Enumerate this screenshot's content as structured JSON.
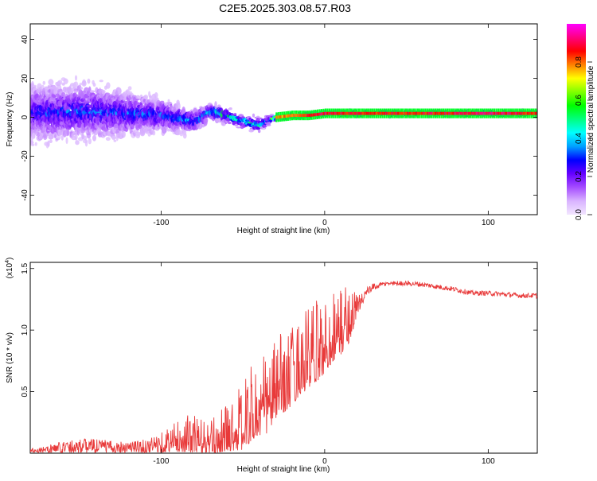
{
  "title": "C2E5.2025.303.08.57.R03",
  "chart_data": [
    {
      "type": "heatmap",
      "xlabel": "Height of straight line (km)",
      "ylabel": "Frequency (Hz)",
      "xlim": [
        -180,
        130
      ],
      "ylim": [
        -50,
        48
      ],
      "xticks": [
        -100,
        0,
        100
      ],
      "xtick_labels": [
        "-100",
        "0",
        "100"
      ],
      "yticks": [
        -40,
        -20,
        0,
        20,
        40
      ],
      "ytick_labels": [
        "-40",
        "-20",
        "0",
        "20",
        "40"
      ],
      "colorbar": {
        "label": "Normalized spectral amplitude",
        "range": [
          0,
          1
        ],
        "ticks": [
          0.0,
          0.2,
          0.4,
          0.6,
          0.8
        ],
        "tick_labels": [
          "0.0",
          "0.2",
          "0.4",
          "0.6",
          "0.8"
        ],
        "colors": [
          "#f2e6ff",
          "#d9b3ff",
          "#a64dff",
          "#6600ff",
          "#0000ff",
          "#00a0ff",
          "#00ffff",
          "#00ff80",
          "#00ff00",
          "#80ff00",
          "#ffff00",
          "#ff8000",
          "#ff0000",
          "#ff0080",
          "#ff00ff"
        ]
      },
      "ridge": {
        "heights": [
          -180,
          -150,
          -120,
          -100,
          -80,
          -70,
          -60,
          -50,
          -40,
          -35,
          -30,
          -20,
          -10,
          0,
          20,
          50,
          100,
          130
        ],
        "frequency": [
          2,
          3,
          2,
          1,
          -2,
          3,
          1,
          -2,
          -4,
          -2,
          0,
          1,
          1,
          2,
          2,
          2,
          2,
          2
        ],
        "spread": [
          22,
          20,
          16,
          12,
          8,
          5,
          5,
          5,
          5,
          4,
          2,
          2,
          2,
          2,
          2,
          2,
          2,
          2
        ],
        "amplitude": [
          0.3,
          0.35,
          0.35,
          0.35,
          0.4,
          0.5,
          0.55,
          0.55,
          0.5,
          0.4,
          0.8,
          0.85,
          0.9,
          0.95,
          0.9,
          0.9,
          0.95,
          0.9
        ]
      }
    },
    {
      "type": "line",
      "xlabel": "Height of straight line (km)",
      "ylabel": "SNR (10 * v/v)",
      "scale_label": "(x10",
      "scale_exponent": "4",
      "scale_label_close": ")",
      "xlim": [
        -180,
        130
      ],
      "ylim": [
        0,
        1.55
      ],
      "xticks": [
        -100,
        0,
        100
      ],
      "xtick_labels": [
        "-100",
        "0",
        "100"
      ],
      "yticks": [
        0.5,
        1.0,
        1.5
      ],
      "ytick_labels": [
        "0.5",
        "1.0",
        "1.5"
      ],
      "series": [
        {
          "name": "SNR",
          "color": "#e83a3a",
          "x": [
            -180,
            -170,
            -160,
            -150,
            -140,
            -130,
            -120,
            -110,
            -100,
            -90,
            -80,
            -70,
            -60,
            -55,
            -50,
            -45,
            -40,
            -35,
            -30,
            -25,
            -20,
            -15,
            -10,
            -5,
            0,
            5,
            10,
            15,
            20,
            25,
            30,
            35,
            40,
            50,
            60,
            70,
            80,
            90,
            100,
            110,
            120,
            130
          ],
          "mean": [
            0.02,
            0.03,
            0.05,
            0.06,
            0.06,
            0.05,
            0.05,
            0.05,
            0.08,
            0.12,
            0.14,
            0.1,
            0.18,
            0.22,
            0.25,
            0.35,
            0.4,
            0.45,
            0.55,
            0.6,
            0.65,
            0.75,
            0.8,
            0.85,
            0.9,
            1.0,
            1.05,
            1.1,
            1.2,
            1.3,
            1.35,
            1.37,
            1.38,
            1.38,
            1.37,
            1.35,
            1.33,
            1.3,
            1.3,
            1.29,
            1.28,
            1.28
          ],
          "noise": [
            0.02,
            0.03,
            0.05,
            0.06,
            0.06,
            0.05,
            0.05,
            0.06,
            0.08,
            0.12,
            0.15,
            0.12,
            0.18,
            0.22,
            0.25,
            0.28,
            0.3,
            0.32,
            0.3,
            0.3,
            0.3,
            0.3,
            0.32,
            0.3,
            0.28,
            0.28,
            0.28,
            0.22,
            0.1,
            0.04,
            0.03,
            0.02,
            0.02,
            0.02,
            0.02,
            0.02,
            0.02,
            0.02,
            0.02,
            0.02,
            0.02,
            0.02
          ]
        }
      ]
    }
  ]
}
